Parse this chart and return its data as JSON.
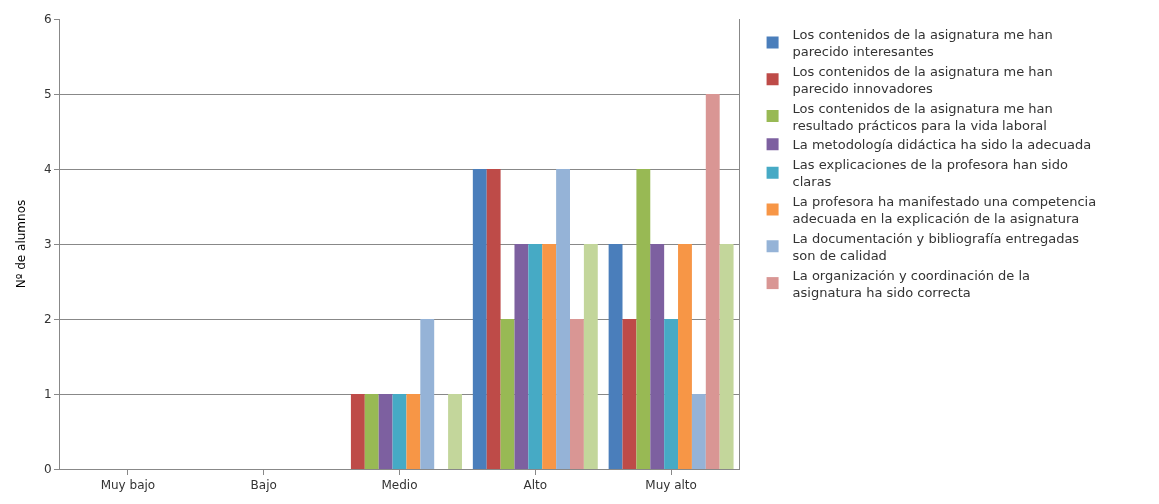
{
  "chart_data": {
    "type": "bar",
    "ylabel": "Nº de alumnos",
    "categories": [
      "Muy bajo",
      "Bajo",
      "Medio",
      "Alto",
      "Muy alto"
    ],
    "ylim": [
      0,
      6
    ],
    "yticks": [
      0,
      1,
      2,
      3,
      4,
      5,
      6
    ],
    "grid": "y",
    "legend": "right",
    "series": [
      {
        "name": "Los contenidos de la asignatura me han parecido interesantes",
        "color": "#4a7ebb",
        "values": [
          0,
          0,
          0,
          4,
          3
        ]
      },
      {
        "name": "Los contenidos de la asignatura me han parecido innovadores",
        "color": "#be4b48",
        "values": [
          0,
          0,
          1,
          4,
          2
        ]
      },
      {
        "name": "Los contenidos de la asignatura me han resultado prácticos para la vida laboral",
        "color": "#98b954",
        "values": [
          0,
          0,
          1,
          2,
          4
        ]
      },
      {
        "name": "La metodología didáctica ha sido la adecuada",
        "color": "#7d60a0",
        "values": [
          0,
          0,
          1,
          3,
          3
        ]
      },
      {
        "name": "Las explicaciones de la profesora han sido claras",
        "color": "#46aac5",
        "values": [
          0,
          0,
          1,
          3,
          2
        ]
      },
      {
        "name": "La profesora ha manifestado una competencia adecuada en la explicación de la asignatura",
        "color": "#f79646",
        "values": [
          0,
          0,
          1,
          3,
          3
        ]
      },
      {
        "name": "La documentación y bibliografía entregadas son de calidad",
        "color": "#95b3d7",
        "values": [
          0,
          0,
          2,
          4,
          1
        ]
      },
      {
        "name": "La organización y coordinación de la asignatura ha sido correcta",
        "color": "#d99694",
        "values": [
          0,
          0,
          0,
          2,
          5
        ]
      },
      {
        "color": "#c3d69b",
        "values": [
          0,
          0,
          1,
          3,
          3
        ]
      }
    ]
  }
}
